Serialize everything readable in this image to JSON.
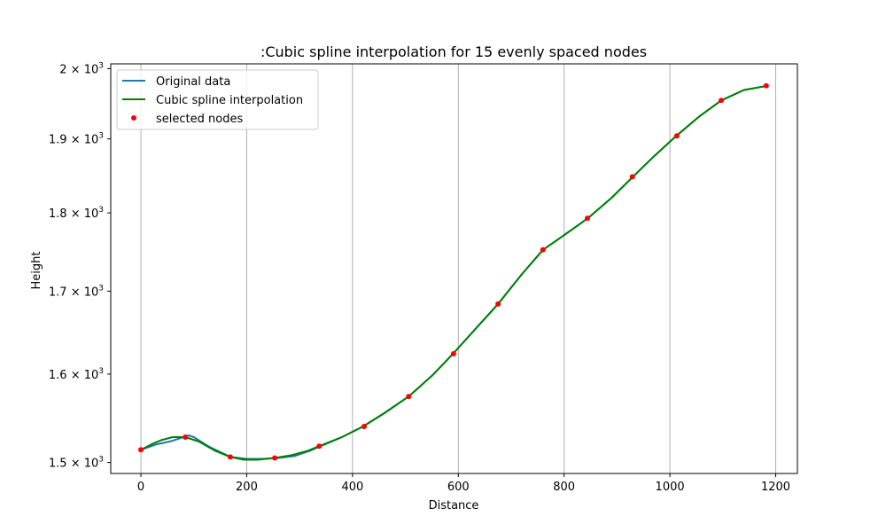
{
  "chart_data": {
    "type": "line",
    "title": ":Cubic spline interpolation for 15 evenly spaced nodes",
    "xlabel": "Distance",
    "ylabel": "Height",
    "xlim": [
      -57,
      1241
    ],
    "ylim": [
      1488,
      2007
    ],
    "y_scale": "log",
    "x_ticks": [
      0,
      200,
      400,
      600,
      800,
      1000,
      1200
    ],
    "x_tick_labels": [
      "0",
      "200",
      "400",
      "600",
      "800",
      "1000",
      "1200"
    ],
    "y_ticks": [
      {
        "value": 1500,
        "mantissa": "1.5",
        "base": "10",
        "exponent": "3"
      },
      {
        "value": 1600,
        "mantissa": "1.6",
        "base": "10",
        "exponent": "3"
      },
      {
        "value": 1700,
        "mantissa": "1.7",
        "base": "10",
        "exponent": "3"
      },
      {
        "value": 1800,
        "mantissa": "1.8",
        "base": "10",
        "exponent": "3"
      },
      {
        "value": 1900,
        "mantissa": "1.9",
        "base": "10",
        "exponent": "3"
      },
      {
        "value": 2000,
        "mantissa": "2",
        "base": "10",
        "exponent": "3"
      }
    ],
    "grid": "x-major",
    "legend_position": "upper-left",
    "series": [
      {
        "name": "Original data",
        "kind": "line",
        "color": "#1f77b4",
        "x": [
          0,
          30,
          60,
          90,
          100,
          130,
          170,
          200,
          230,
          260,
          290,
          320,
          340,
          380,
          420,
          460,
          506,
          550,
          590,
          630,
          675,
          720,
          760,
          800,
          845,
          890,
          930,
          970,
          1012,
          1055,
          1097,
          1140,
          1184
        ],
        "y": [
          1514,
          1520,
          1524,
          1530,
          1528,
          1517,
          1506,
          1504,
          1504,
          1505,
          1507,
          1513,
          1518,
          1528,
          1540,
          1555,
          1574,
          1598,
          1624,
          1652,
          1684,
          1721,
          1752,
          1771,
          1793,
          1820,
          1848,
          1876,
          1904,
          1931,
          1954,
          1969,
          1975
        ]
      },
      {
        "name": "Cubic spline interpolation",
        "kind": "line",
        "color": "#008000",
        "x": [
          0,
          20,
          40,
          60,
          84,
          110,
          140,
          169,
          195,
          220,
          253,
          285,
          316,
          337,
          380,
          420,
          460,
          506,
          550,
          590,
          630,
          675,
          720,
          760,
          800,
          845,
          890,
          930,
          970,
          1012,
          1055,
          1097,
          1140,
          1184
        ],
        "y": [
          1514,
          1520,
          1525,
          1528,
          1528,
          1523,
          1513,
          1506,
          1503,
          1503,
          1505,
          1508,
          1513,
          1518,
          1528,
          1540,
          1555,
          1574,
          1598,
          1624,
          1652,
          1684,
          1721,
          1752,
          1771,
          1793,
          1820,
          1848,
          1876,
          1904,
          1931,
          1954,
          1969,
          1975
        ]
      },
      {
        "name": "selected nodes",
        "kind": "scatter",
        "color": "#ff0000",
        "x": [
          0,
          84,
          169,
          253,
          337,
          422,
          506,
          591,
          675,
          760,
          844,
          929,
          1013,
          1097,
          1182
        ],
        "y": [
          1514,
          1528,
          1506,
          1505,
          1518,
          1540,
          1574,
          1624,
          1684,
          1752,
          1793,
          1848,
          1904,
          1954,
          1975
        ]
      }
    ]
  }
}
